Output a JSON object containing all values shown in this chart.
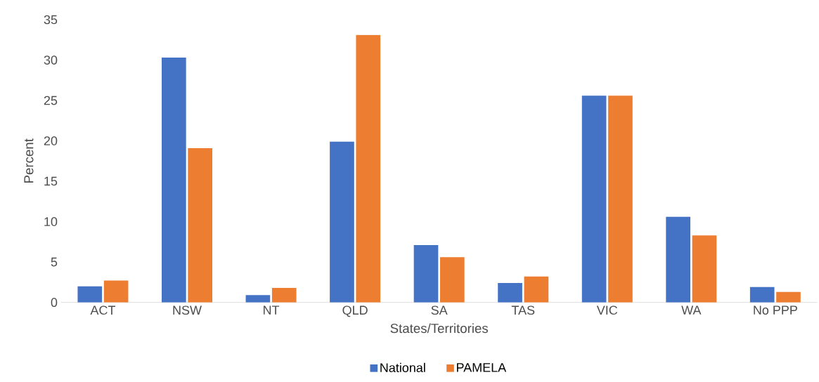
{
  "chart_data": {
    "type": "bar",
    "xlabel": "States/Territories",
    "ylabel": "Percent",
    "categories": [
      "ACT",
      "NSW",
      "NT",
      "QLD",
      "SA",
      "TAS",
      "VIC",
      "WA",
      "No PPP"
    ],
    "series": [
      {
        "name": "National",
        "color": "#4472c4",
        "values": [
          2.0,
          30.3,
          0.9,
          19.9,
          7.1,
          2.4,
          25.6,
          10.6,
          1.9
        ]
      },
      {
        "name": "PAMELA",
        "color": "#ed7d31",
        "values": [
          2.7,
          19.1,
          1.8,
          33.1,
          5.6,
          3.2,
          25.6,
          8.3,
          1.3
        ]
      }
    ],
    "ylim": [
      0,
      35
    ],
    "yticks": [
      0,
      5,
      10,
      15,
      20,
      25,
      30,
      35
    ],
    "grid": false,
    "legend": "bottom"
  }
}
